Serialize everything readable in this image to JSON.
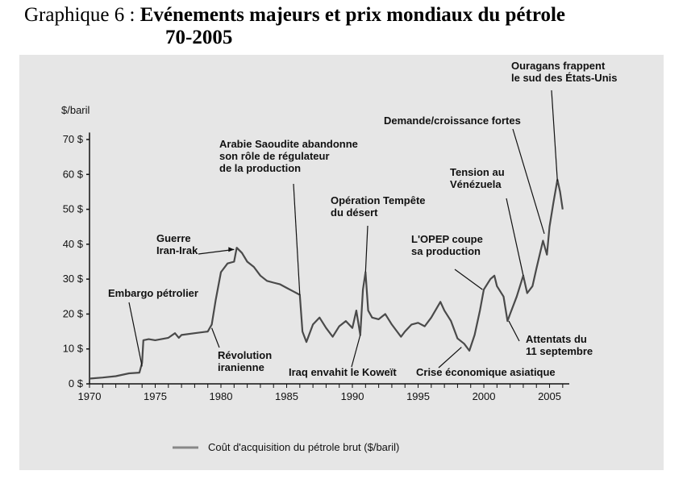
{
  "caption": {
    "prefix": "Graphique 6 : ",
    "title_line1": "Evénements majeurs et prix mondiaux du pétrole",
    "title_line2": "70-2005"
  },
  "chart_data": {
    "type": "line",
    "ylabel": "$/baril",
    "xlim": [
      1970,
      2006.5
    ],
    "ylim": [
      0,
      75
    ],
    "x_ticks": [
      1970,
      1975,
      1980,
      1985,
      1990,
      1995,
      2000,
      2005
    ],
    "y_ticks": [
      {
        "value": 0,
        "label": "0 $"
      },
      {
        "value": 10,
        "label": "10 $"
      },
      {
        "value": 20,
        "label": "20 $"
      },
      {
        "value": 30,
        "label": "30 $"
      },
      {
        "value": 40,
        "label": "40 $"
      },
      {
        "value": 50,
        "label": "50 $"
      },
      {
        "value": 60,
        "label": "60 $"
      },
      {
        "value": 70,
        "label": "70 $"
      }
    ],
    "grid": false,
    "legend_placement": "bottom",
    "series": [
      {
        "name": "Coût d'acquisition du pétrole brut ($/baril)",
        "color": "#4a4a4a",
        "points": [
          [
            1970.0,
            1.5
          ],
          [
            1971.0,
            1.8
          ],
          [
            1972.0,
            2.2
          ],
          [
            1973.0,
            3.0
          ],
          [
            1973.8,
            3.2
          ],
          [
            1974.0,
            6.0
          ],
          [
            1974.1,
            12.5
          ],
          [
            1974.5,
            12.8
          ],
          [
            1975.0,
            12.5
          ],
          [
            1976.0,
            13.2
          ],
          [
            1976.5,
            14.5
          ],
          [
            1976.8,
            13.2
          ],
          [
            1977.0,
            14.0
          ],
          [
            1978.0,
            14.5
          ],
          [
            1979.0,
            15.0
          ],
          [
            1979.3,
            17.0
          ],
          [
            1979.6,
            24.0
          ],
          [
            1980.0,
            32.0
          ],
          [
            1980.5,
            34.5
          ],
          [
            1981.0,
            35.0
          ],
          [
            1981.2,
            39.0
          ],
          [
            1981.6,
            37.5
          ],
          [
            1982.0,
            35.0
          ],
          [
            1982.5,
            33.5
          ],
          [
            1983.0,
            31.0
          ],
          [
            1983.5,
            29.5
          ],
          [
            1984.0,
            29.0
          ],
          [
            1984.5,
            28.5
          ],
          [
            1985.0,
            27.5
          ],
          [
            1985.5,
            26.5
          ],
          [
            1986.0,
            25.5
          ],
          [
            1986.2,
            15.0
          ],
          [
            1986.5,
            12.0
          ],
          [
            1987.0,
            17.0
          ],
          [
            1987.5,
            19.0
          ],
          [
            1988.0,
            16.0
          ],
          [
            1988.5,
            13.5
          ],
          [
            1989.0,
            16.5
          ],
          [
            1989.5,
            18.0
          ],
          [
            1990.0,
            16.0
          ],
          [
            1990.3,
            21.0
          ],
          [
            1990.6,
            14.0
          ],
          [
            1990.8,
            27.0
          ],
          [
            1991.0,
            32.0
          ],
          [
            1991.2,
            21.0
          ],
          [
            1991.5,
            19.0
          ],
          [
            1992.0,
            18.5
          ],
          [
            1992.5,
            20.0
          ],
          [
            1993.0,
            17.0
          ],
          [
            1993.7,
            13.5
          ],
          [
            1994.0,
            15.0
          ],
          [
            1994.5,
            17.0
          ],
          [
            1995.0,
            17.5
          ],
          [
            1995.5,
            16.5
          ],
          [
            1996.0,
            19.0
          ],
          [
            1996.7,
            23.5
          ],
          [
            1997.0,
            21.0
          ],
          [
            1997.5,
            18.0
          ],
          [
            1998.0,
            13.0
          ],
          [
            1998.5,
            11.5
          ],
          [
            1998.9,
            9.5
          ],
          [
            1999.3,
            14.0
          ],
          [
            1999.7,
            21.0
          ],
          [
            2000.0,
            27.0
          ],
          [
            2000.5,
            30.0
          ],
          [
            2000.8,
            31.0
          ],
          [
            2001.0,
            28.0
          ],
          [
            2001.5,
            25.0
          ],
          [
            2001.8,
            18.0
          ],
          [
            2002.0,
            20.0
          ],
          [
            2002.5,
            25.0
          ],
          [
            2003.0,
            31.0
          ],
          [
            2003.3,
            26.0
          ],
          [
            2003.7,
            28.0
          ],
          [
            2004.0,
            33.0
          ],
          [
            2004.5,
            41.0
          ],
          [
            2004.8,
            37.0
          ],
          [
            2005.0,
            45.0
          ],
          [
            2005.3,
            52.0
          ],
          [
            2005.6,
            58.5
          ],
          [
            2005.8,
            55.0
          ],
          [
            2006.0,
            50.0
          ]
        ]
      }
    ],
    "annotations": [
      {
        "lines": [
          "Ouragans frappent",
          "le sud des États-Unis"
        ]
      },
      {
        "lines": [
          "Demande/croissance fortes"
        ]
      },
      {
        "lines": [
          "Arabie Saoudite abandonne",
          "son rôle de régulateur",
          "de la production"
        ]
      },
      {
        "lines": [
          "Tension au",
          "Vénézuela"
        ]
      },
      {
        "lines": [
          "Opération Tempête",
          "du désert"
        ]
      },
      {
        "lines": [
          "Guerre",
          "Iran-Irak"
        ]
      },
      {
        "lines": [
          "L'OPEP coupe",
          "sa production"
        ]
      },
      {
        "lines": [
          "Embargo pétrolier"
        ]
      },
      {
        "lines": [
          "Attentats du",
          "11 septembre"
        ]
      },
      {
        "lines": [
          "Révolution",
          "iranienne"
        ]
      },
      {
        "lines": [
          "Iraq envahit le Koweït"
        ]
      },
      {
        "lines": [
          "Crise économique asiatique"
        ]
      }
    ]
  }
}
